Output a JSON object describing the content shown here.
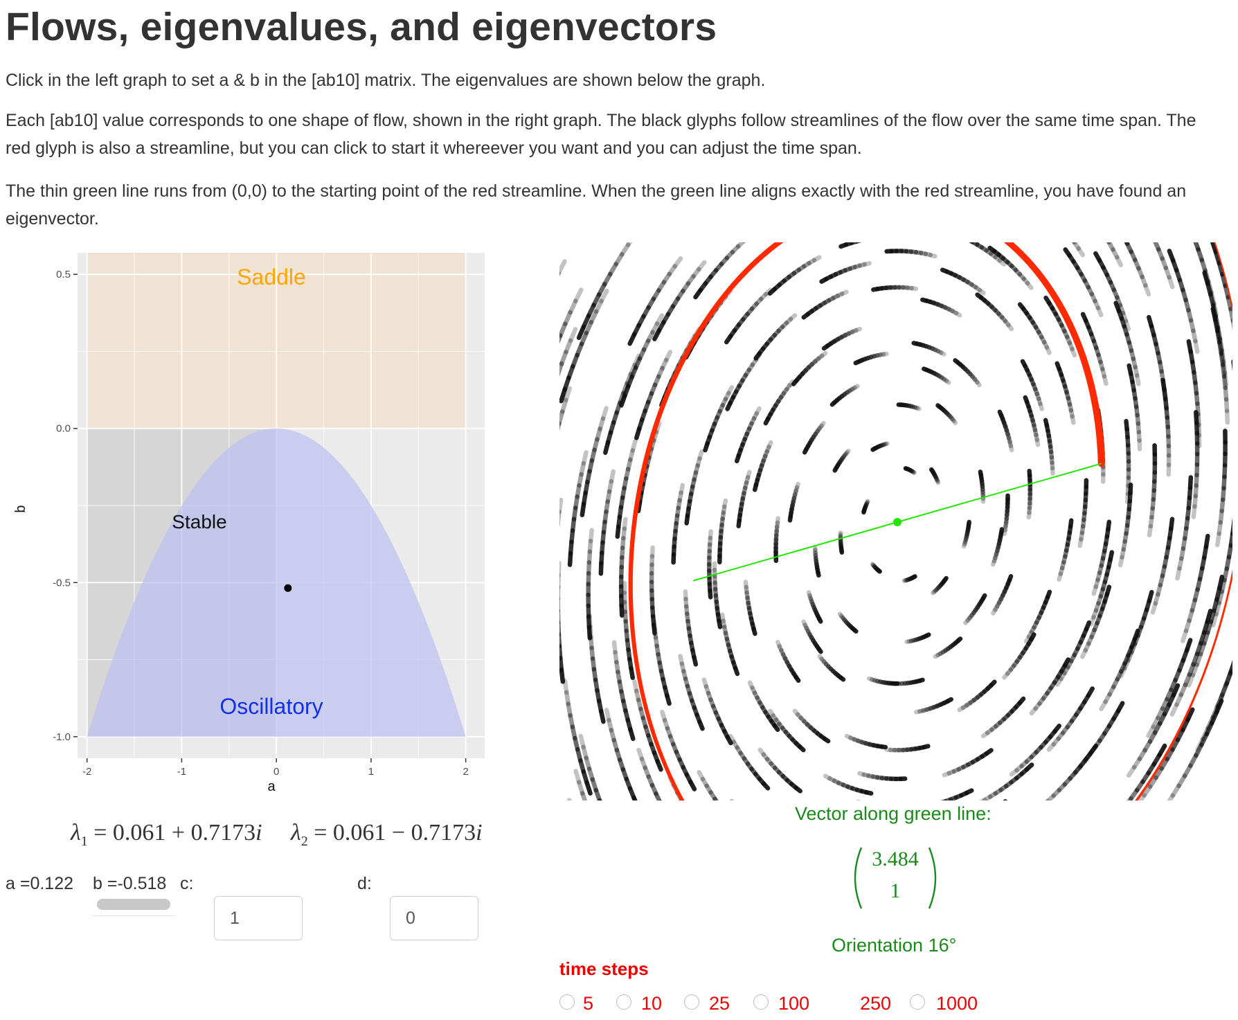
{
  "page": {
    "title": "Flows, eigenvalues, and eigenvectors",
    "para1": "Click in the left graph to set a & b in the [ab10] matrix. The eigenvalues are shown below the graph.",
    "para2": "Each [ab10] value corresponds to one shape of flow, shown in the right graph. The black glyphs follow streamlines of the flow over the same time span. The red glyph is also a streamline, but you can click to start it whereever you want and you can adjust the time span.",
    "para3": "The thin green line runs from (0,0) to the starting point of the red streamline. When the green line aligns exactly with the red streamline, you have found an eigenvector."
  },
  "left_plot": {
    "xlabel": "a",
    "ylabel": "b",
    "x_ticks": [
      "-2",
      "-1",
      "0",
      "1",
      "2"
    ],
    "y_ticks": [
      "0.5",
      "0.0",
      "-0.5",
      "-1.0"
    ],
    "xlim": [
      -2.1,
      2.2
    ],
    "ylim": [
      -1.07,
      0.57
    ],
    "region_labels": {
      "saddle": "Saddle",
      "stable": "Stable",
      "oscillatory": "Oscillatory"
    },
    "selected_point": {
      "a": 0.122,
      "b": -0.518
    },
    "colors": {
      "saddle": "#f0e3d3",
      "stable": "#d4d4d4",
      "oscillatory": "#c6c8ee",
      "saddle_text": "#ffa500",
      "oscillatory_text": "#1230e6"
    }
  },
  "eigenvalues": {
    "lambda1_sym": "λ",
    "lambda1_sub": "1",
    "lambda1_expr": "= 0.061 + 0.7173",
    "lambda2_sym": "λ",
    "lambda2_sub": "2",
    "lambda2_expr": "= 0.061 − 0.7173",
    "imag_unit": "i"
  },
  "controls": {
    "a_label": "a =0.122",
    "b_label": "b =-0.518",
    "c_label": "c:",
    "d_label": "d:",
    "c_value": "1",
    "d_value": "0"
  },
  "vector": {
    "caption": "Vector along green line:",
    "x": "3.484",
    "y": "1",
    "orientation": "Orientation 16°"
  },
  "time_steps": {
    "label": "time steps",
    "options": [
      "5",
      "10",
      "25",
      "100",
      "250",
      "1000"
    ],
    "selected": "250"
  },
  "flow": {
    "a": 0.122,
    "b": -0.518,
    "c": 1,
    "d": 0,
    "colors": {
      "red": "#ff2a00",
      "green": "#22e600",
      "glyph": "#111111"
    }
  }
}
